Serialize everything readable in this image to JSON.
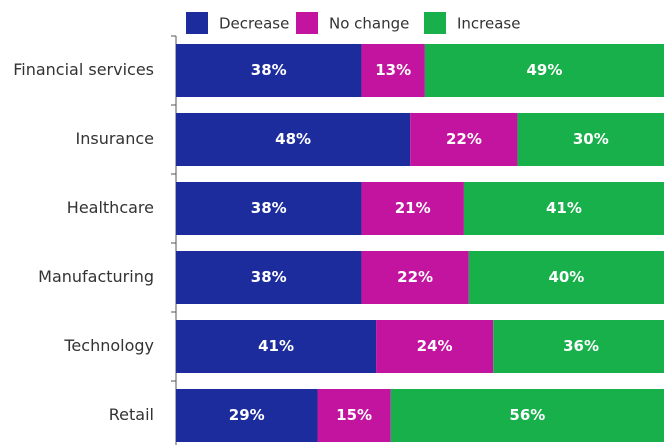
{
  "chart_data": {
    "type": "stacked-barh",
    "categories": [
      "Financial services",
      "Insurance",
      "Healthcare",
      "Manufacturing",
      "Technology",
      "Retail"
    ],
    "xlim": [
      0,
      100
    ],
    "series": [
      {
        "name": "Decrease",
        "color": "#1c2c9c",
        "values": [
          38,
          48,
          38,
          38,
          41,
          29
        ],
        "value_labels": [
          "38%",
          "48%",
          "38%",
          "38%",
          "41%",
          "29%"
        ]
      },
      {
        "name": "No change",
        "color": "#c2149f",
        "values": [
          13,
          22,
          21,
          22,
          24,
          15
        ],
        "value_labels": [
          "13%",
          "22%",
          "21%",
          "22%",
          "24%",
          "15%"
        ]
      },
      {
        "name": "Increase",
        "color": "#17b04b",
        "values": [
          49,
          30,
          41,
          40,
          36,
          56
        ],
        "value_labels": [
          "49%",
          "30%",
          "41%",
          "40%",
          "36%",
          "56%"
        ]
      }
    ]
  }
}
